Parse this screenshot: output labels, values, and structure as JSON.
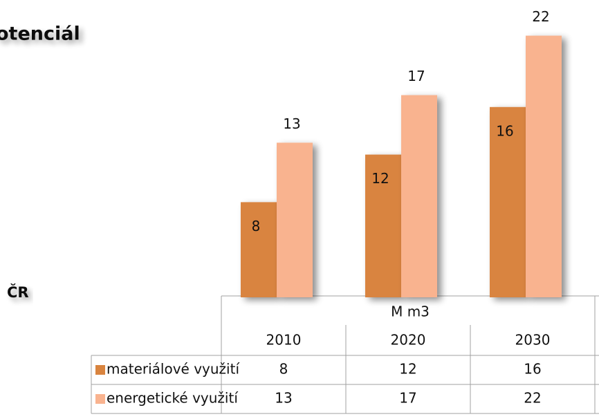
{
  "title": "otenciál",
  "region": "ČR",
  "chart_data": {
    "type": "bar",
    "unit": "M m3",
    "categories": [
      "2010",
      "2020",
      "2030"
    ],
    "series": [
      {
        "name": "materiálové využití",
        "color": "#d9843f",
        "values": [
          8,
          12,
          16
        ]
      },
      {
        "name": "energetické využití",
        "color": "#f9b38f",
        "values": [
          13,
          17,
          22
        ]
      }
    ]
  }
}
